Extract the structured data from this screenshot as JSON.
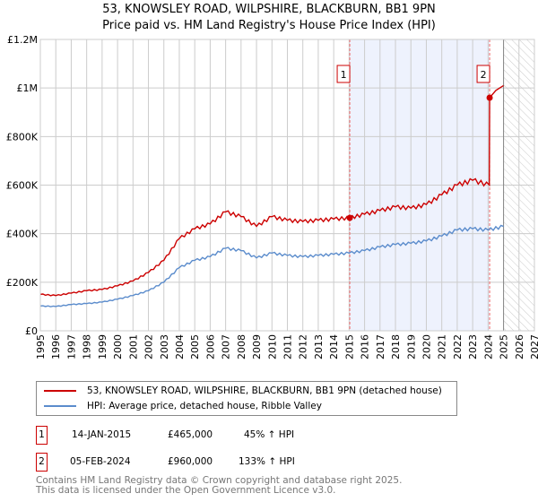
{
  "title_line1": "53, KNOWSLEY ROAD, WILPSHIRE, BLACKBURN, BB1 9PN",
  "title_line2": "Price paid vs. HM Land Registry's House Price Index (HPI)",
  "chart_data": {
    "type": "line",
    "xlim": [
      1995,
      2027
    ],
    "ylim": [
      0,
      1200000
    ],
    "x_ticks": [
      "1995",
      "1996",
      "1997",
      "1998",
      "1999",
      "2000",
      "2001",
      "2002",
      "2003",
      "2004",
      "2005",
      "2006",
      "2007",
      "2008",
      "2009",
      "2010",
      "2011",
      "2012",
      "2013",
      "2014",
      "2015",
      "2016",
      "2017",
      "2018",
      "2019",
      "2020",
      "2021",
      "2022",
      "2023",
      "2024",
      "2025",
      "2026",
      "2027"
    ],
    "y_ticks": [
      {
        "v": 0,
        "label": "£0"
      },
      {
        "v": 200000,
        "label": "£200K"
      },
      {
        "v": 400000,
        "label": "£400K"
      },
      {
        "v": 600000,
        "label": "£600K"
      },
      {
        "v": 800000,
        "label": "£800K"
      },
      {
        "v": 1000000,
        "label": "£1M"
      },
      {
        "v": 1200000,
        "label": "£1.2M"
      }
    ],
    "grid": true,
    "series": [
      {
        "name": "53, KNOWSLEY ROAD, WILPSHIRE, BLACKBURN, BB1 9PN (detached house)",
        "color": "#cc0000",
        "x": [
          1995,
          1996,
          1997,
          1998,
          1999,
          2000,
          2001,
          2002,
          2003,
          2004,
          2005,
          2006,
          2007,
          2008,
          2009,
          2010,
          2011,
          2012,
          2013,
          2014,
          2015.04,
          2016,
          2017,
          2018,
          2019,
          2020,
          2021,
          2022,
          2023,
          2024.08,
          2024.1,
          2024.5,
          2025
        ],
        "y": [
          150000,
          145000,
          155000,
          165000,
          170000,
          185000,
          205000,
          240000,
          290000,
          380000,
          420000,
          440000,
          490000,
          470000,
          430000,
          470000,
          455000,
          450000,
          455000,
          460000,
          465000,
          480000,
          495000,
          510000,
          505000,
          520000,
          560000,
          600000,
          620000,
          600000,
          960000,
          990000,
          1010000
        ]
      },
      {
        "name": "HPI: Average price, detached house, Ribble Valley",
        "color": "#5b8ccc",
        "x": [
          1995,
          1996,
          1997,
          1998,
          1999,
          2000,
          2001,
          2002,
          2003,
          2004,
          2005,
          2006,
          2007,
          2008,
          2009,
          2010,
          2011,
          2012,
          2013,
          2014,
          2015,
          2016,
          2017,
          2018,
          2019,
          2020,
          2021,
          2022,
          2023,
          2024,
          2025
        ],
        "y": [
          102000,
          100000,
          108000,
          112000,
          118000,
          130000,
          145000,
          165000,
          200000,
          260000,
          290000,
          305000,
          340000,
          330000,
          300000,
          320000,
          310000,
          305000,
          310000,
          315000,
          320000,
          330000,
          345000,
          355000,
          360000,
          370000,
          390000,
          415000,
          420000,
          415000,
          430000
        ]
      }
    ],
    "sales": [
      {
        "id": "1",
        "x": 2015.04,
        "y": 465000
      },
      {
        "id": "2",
        "x": 2024.1,
        "y": 960000
      }
    ],
    "forecast_from": 2025.0
  },
  "legend": [
    "53, KNOWSLEY ROAD, WILPSHIRE, BLACKBURN, BB1 9PN (detached house)",
    "HPI: Average price, detached house, Ribble Valley"
  ],
  "table": [
    {
      "id": "1",
      "date": "14-JAN-2015",
      "price": "£465,000",
      "hpi": "45% ↑ HPI"
    },
    {
      "id": "2",
      "date": "05-FEB-2024",
      "price": "£960,000",
      "hpi": "133% ↑ HPI"
    }
  ],
  "footer1": "Contains HM Land Registry data © Crown copyright and database right 2025.",
  "footer2": "This data is licensed under the Open Government Licence v3.0."
}
